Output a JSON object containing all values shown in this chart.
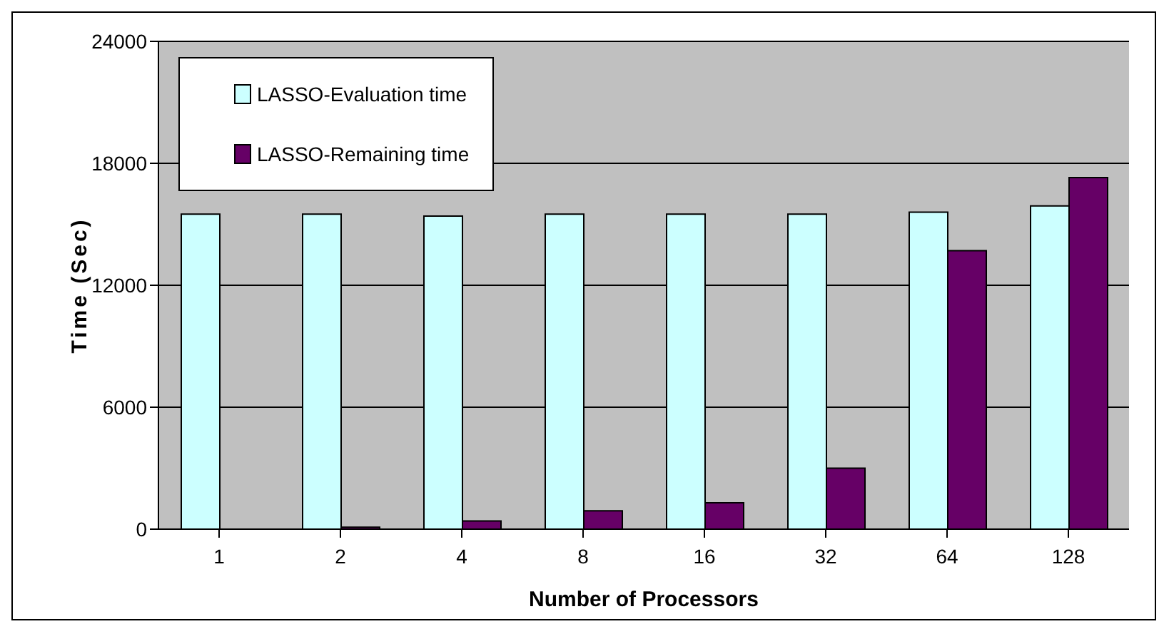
{
  "chart_data": {
    "type": "bar",
    "xlabel": "Number of Processors",
    "ylabel": "Time (Sec)",
    "categories": [
      "1",
      "2",
      "4",
      "8",
      "16",
      "32",
      "64",
      "128"
    ],
    "series": [
      {
        "name": "LASSO-Evaluation time",
        "color": "#ccffff",
        "values": [
          15500,
          15500,
          15400,
          15500,
          15500,
          15500,
          15600,
          15900
        ]
      },
      {
        "name": "LASSO-Remaining time",
        "color": "#660066",
        "values": [
          0,
          100,
          400,
          900,
          1300,
          3000,
          13700,
          17300
        ]
      }
    ],
    "ylim": [
      0,
      24000
    ],
    "yticks": [
      0,
      6000,
      12000,
      18000,
      24000
    ],
    "grid": "y",
    "legend": "top left"
  }
}
